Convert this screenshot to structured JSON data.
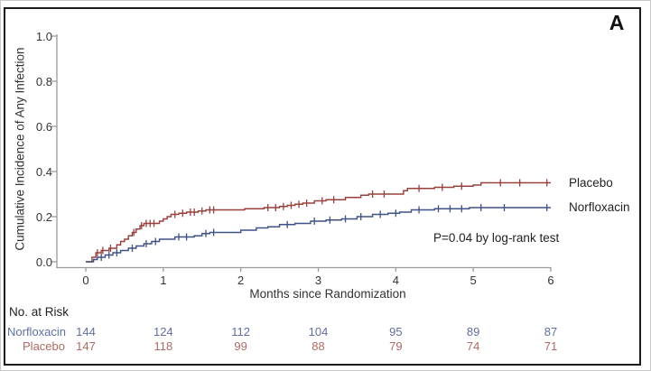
{
  "panel_label": "A",
  "colors": {
    "axis": "#9a9a9a",
    "tick_text": "#333333",
    "placebo_curve": "#97403d",
    "norfloxacin_curve": "#3f5185",
    "risk_placebo_text": "#ad6a64",
    "risk_norfloxacin_text": "#5f6fa0"
  },
  "chart_data": {
    "type": "line",
    "subtype": "kaplan-meier-step",
    "title": "",
    "xlabel": "Months since Randomization",
    "ylabel": "Cumulative Incidence of Any Infection",
    "xlim": [
      0,
      6
    ],
    "ylim": [
      0,
      1
    ],
    "x_ticks": [
      0,
      1,
      2,
      3,
      4,
      5,
      6
    ],
    "y_ticks": [
      "0.0",
      "0.2",
      "0.4",
      "0.6",
      "0.8",
      "1.0"
    ],
    "grid": false,
    "annotation": "P=0.04 by log-rank test",
    "legend_position": "right of curve ends",
    "series": [
      {
        "name": "Placebo",
        "color": "#97403d",
        "points": [
          [
            0,
            0
          ],
          [
            0.08,
            0.02
          ],
          [
            0.13,
            0.04
          ],
          [
            0.2,
            0.05
          ],
          [
            0.3,
            0.06
          ],
          [
            0.4,
            0.075
          ],
          [
            0.45,
            0.09
          ],
          [
            0.5,
            0.1
          ],
          [
            0.55,
            0.115
          ],
          [
            0.6,
            0.13
          ],
          [
            0.65,
            0.145
          ],
          [
            0.7,
            0.16
          ],
          [
            0.75,
            0.17
          ],
          [
            0.95,
            0.18
          ],
          [
            1.0,
            0.19
          ],
          [
            1.05,
            0.2
          ],
          [
            1.1,
            0.21
          ],
          [
            1.2,
            0.215
          ],
          [
            1.3,
            0.22
          ],
          [
            1.45,
            0.225
          ],
          [
            1.55,
            0.23
          ],
          [
            2.05,
            0.235
          ],
          [
            2.3,
            0.24
          ],
          [
            2.5,
            0.245
          ],
          [
            2.6,
            0.25
          ],
          [
            2.7,
            0.255
          ],
          [
            2.8,
            0.26
          ],
          [
            2.95,
            0.27
          ],
          [
            3.1,
            0.275
          ],
          [
            3.35,
            0.285
          ],
          [
            3.55,
            0.295
          ],
          [
            3.65,
            0.3
          ],
          [
            4.1,
            0.315
          ],
          [
            4.15,
            0.325
          ],
          [
            4.5,
            0.33
          ],
          [
            4.75,
            0.335
          ],
          [
            5.0,
            0.34
          ],
          [
            5.1,
            0.35
          ],
          [
            6,
            0.35
          ]
        ],
        "censor_marks": [
          [
            0.15,
            0.04
          ],
          [
            0.22,
            0.05
          ],
          [
            0.32,
            0.06
          ],
          [
            0.62,
            0.13
          ],
          [
            0.72,
            0.16
          ],
          [
            0.78,
            0.17
          ],
          [
            0.83,
            0.17
          ],
          [
            0.88,
            0.17
          ],
          [
            1.15,
            0.21
          ],
          [
            1.25,
            0.215
          ],
          [
            1.35,
            0.22
          ],
          [
            1.4,
            0.22
          ],
          [
            1.5,
            0.225
          ],
          [
            1.6,
            0.23
          ],
          [
            1.65,
            0.23
          ],
          [
            2.35,
            0.24
          ],
          [
            2.45,
            0.24
          ],
          [
            2.55,
            0.245
          ],
          [
            2.65,
            0.25
          ],
          [
            2.75,
            0.255
          ],
          [
            2.85,
            0.26
          ],
          [
            3.05,
            0.27
          ],
          [
            3.2,
            0.275
          ],
          [
            3.7,
            0.3
          ],
          [
            3.85,
            0.3
          ],
          [
            4.3,
            0.325
          ],
          [
            4.6,
            0.33
          ],
          [
            4.85,
            0.335
          ],
          [
            5.35,
            0.35
          ],
          [
            5.6,
            0.35
          ],
          [
            5.95,
            0.35
          ]
        ],
        "end_value": 0.35
      },
      {
        "name": "Norfloxacin",
        "color": "#3f5185",
        "points": [
          [
            0,
            0
          ],
          [
            0.1,
            0.01
          ],
          [
            0.15,
            0.02
          ],
          [
            0.25,
            0.03
          ],
          [
            0.35,
            0.04
          ],
          [
            0.45,
            0.05
          ],
          [
            0.55,
            0.06
          ],
          [
            0.65,
            0.07
          ],
          [
            0.75,
            0.08
          ],
          [
            0.85,
            0.09
          ],
          [
            0.95,
            0.1
          ],
          [
            1.15,
            0.11
          ],
          [
            1.4,
            0.115
          ],
          [
            1.5,
            0.125
          ],
          [
            1.6,
            0.13
          ],
          [
            2.0,
            0.14
          ],
          [
            2.2,
            0.15
          ],
          [
            2.35,
            0.155
          ],
          [
            2.5,
            0.165
          ],
          [
            2.7,
            0.17
          ],
          [
            2.9,
            0.18
          ],
          [
            3.1,
            0.185
          ],
          [
            3.3,
            0.19
          ],
          [
            3.5,
            0.2
          ],
          [
            3.7,
            0.21
          ],
          [
            3.9,
            0.215
          ],
          [
            4.05,
            0.22
          ],
          [
            4.2,
            0.23
          ],
          [
            4.5,
            0.235
          ],
          [
            4.95,
            0.24
          ],
          [
            6,
            0.24
          ]
        ],
        "censor_marks": [
          [
            0.2,
            0.02
          ],
          [
            0.3,
            0.03
          ],
          [
            0.4,
            0.04
          ],
          [
            0.6,
            0.06
          ],
          [
            0.78,
            0.08
          ],
          [
            0.9,
            0.09
          ],
          [
            1.2,
            0.11
          ],
          [
            1.3,
            0.11
          ],
          [
            1.55,
            0.125
          ],
          [
            1.65,
            0.13
          ],
          [
            2.6,
            0.165
          ],
          [
            2.95,
            0.18
          ],
          [
            3.15,
            0.185
          ],
          [
            3.35,
            0.19
          ],
          [
            3.55,
            0.2
          ],
          [
            3.8,
            0.21
          ],
          [
            4.0,
            0.215
          ],
          [
            4.3,
            0.23
          ],
          [
            4.55,
            0.235
          ],
          [
            4.7,
            0.235
          ],
          [
            4.85,
            0.235
          ],
          [
            5.1,
            0.24
          ],
          [
            5.4,
            0.24
          ],
          [
            5.95,
            0.24
          ]
        ],
        "end_value": 0.24
      }
    ]
  },
  "risk_table": {
    "title": "No. at Risk",
    "time_points": [
      0,
      1,
      2,
      3,
      4,
      5,
      6
    ],
    "rows": [
      {
        "label": "Norfloxacin",
        "color": "#5f6fa0",
        "values": [
          "144",
          "124",
          "112",
          "104",
          "95",
          "89",
          "87"
        ]
      },
      {
        "label": "Placebo",
        "color": "#ad6a64",
        "values": [
          "147",
          "118",
          "99",
          "88",
          "79",
          "74",
          "71"
        ]
      }
    ]
  }
}
